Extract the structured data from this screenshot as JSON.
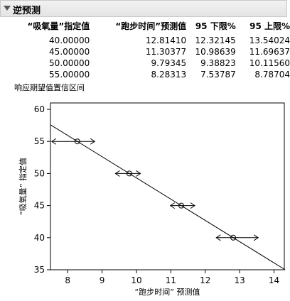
{
  "outline": {
    "title": "逆预测",
    "expanded": true
  },
  "table": {
    "columns": [
      "“吸氧量”指定值",
      "“跑步时间”预测值",
      "95 下限%",
      "95 上限%"
    ],
    "rows": [
      [
        "40.00000",
        "12.81410",
        "12.32145",
        "13.54024"
      ],
      [
        "45.00000",
        "11.30377",
        "10.98639",
        "11.69637"
      ],
      [
        "50.00000",
        "9.79345",
        "9.38823",
        "10.11560"
      ],
      [
        "55.00000",
        "8.28313",
        "7.53787",
        "8.78704"
      ]
    ]
  },
  "subtitle": "响应期望值置信区间",
  "chart_data": {
    "type": "scatter",
    "xlabel": "“跑步时间” 预测值",
    "ylabel": "“吸氧量” 指定值",
    "xlim": [
      7.5,
      14.3
    ],
    "ylim": [
      35,
      61
    ],
    "xticks": [
      8,
      9,
      10,
      11,
      12,
      13,
      14
    ],
    "yticks": [
      35,
      40,
      45,
      50,
      55,
      60
    ],
    "points": [
      {
        "x": 12.8141,
        "y": 40,
        "lower": 12.32145,
        "upper": 13.54024
      },
      {
        "x": 11.30377,
        "y": 45,
        "lower": 10.98639,
        "upper": 11.69637
      },
      {
        "x": 9.79345,
        "y": 50,
        "lower": 9.38823,
        "upper": 10.1156
      },
      {
        "x": 8.28313,
        "y": 55,
        "lower": 7.53787,
        "upper": 8.78704
      }
    ],
    "fit_line": {
      "slope": -3.3104,
      "intercept": 82.4198
    },
    "grid": false,
    "colors": {
      "line": "#000000",
      "marker": "#000000"
    }
  }
}
